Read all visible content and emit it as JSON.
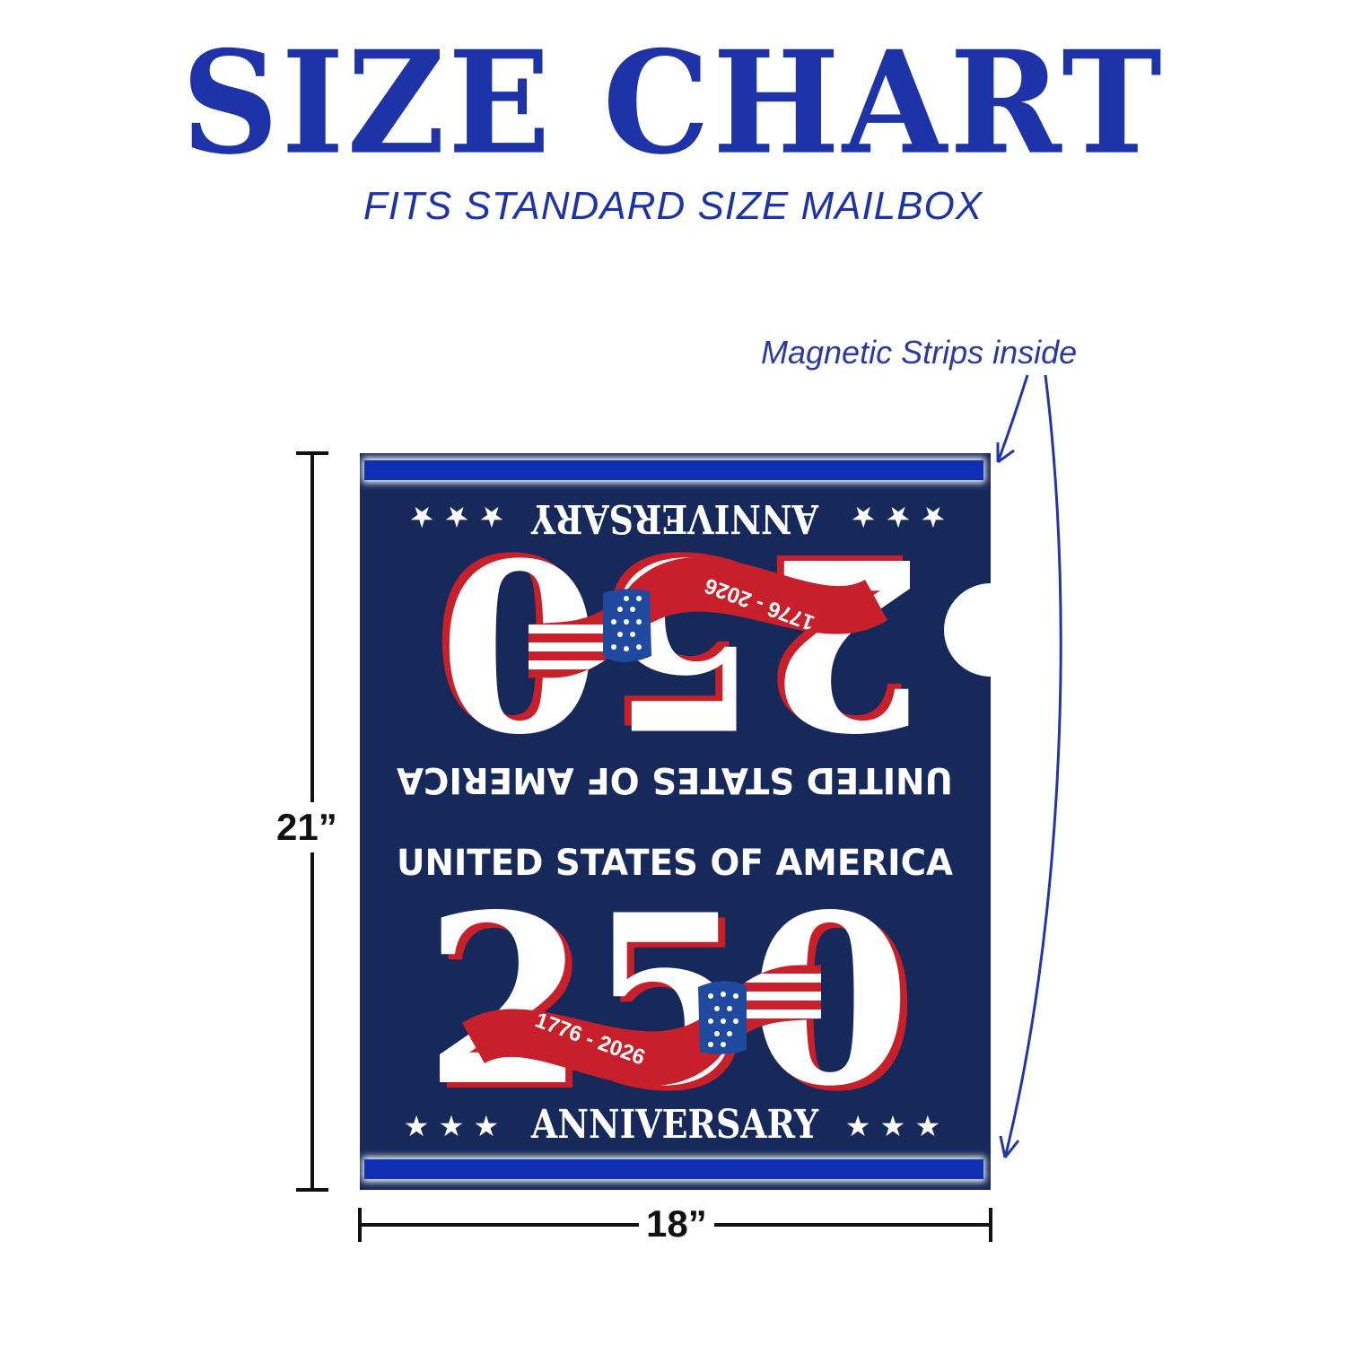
{
  "header": {
    "title": "SIZE CHART",
    "subtitle": "FITS STANDARD SIZE MAILBOX"
  },
  "callout": {
    "label": "Magnetic Strips inside"
  },
  "dimensions": {
    "height": "21”",
    "width": "18”"
  },
  "cover": {
    "line_country": "UNITED STATES OF AMERICA",
    "number": "250",
    "ribbon_years": "1776 - 2026",
    "line_anniversary": "ANNIVERSARY",
    "stars": "★ ★ ★"
  },
  "colors": {
    "title_blue": "#1e33a8",
    "panel_navy": "#16295a",
    "strip_blue": "#0f2fb5",
    "ribbon_red": "#c8202a",
    "star_blue": "#1f4aa0"
  }
}
